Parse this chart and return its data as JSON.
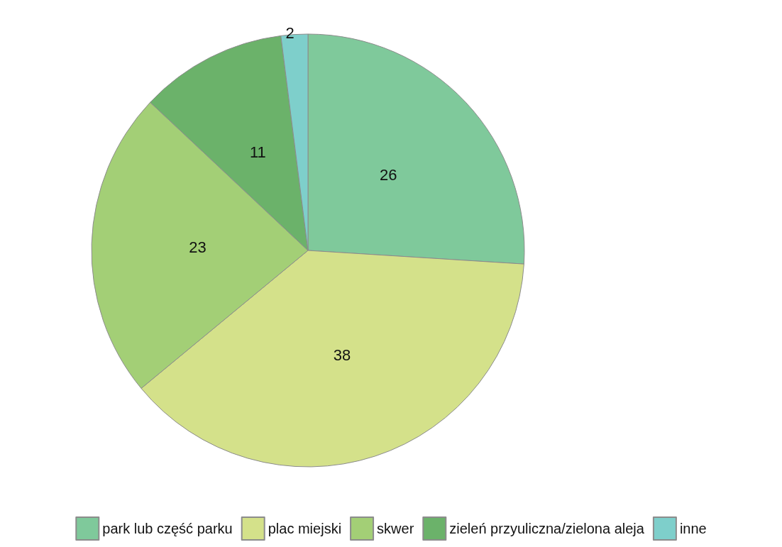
{
  "chart_data": {
    "type": "pie",
    "categories": [
      "park lub część parku",
      "plac miejski",
      "skwer",
      "zieleń przyuliczna/zielona aleja",
      "inne"
    ],
    "values": [
      26,
      38,
      23,
      11,
      2
    ],
    "colors": [
      "#7fc99b",
      "#d4e18a",
      "#a3cf76",
      "#6bb26a",
      "#7ecfcb"
    ],
    "data_labels": true,
    "legend": "bottom"
  }
}
